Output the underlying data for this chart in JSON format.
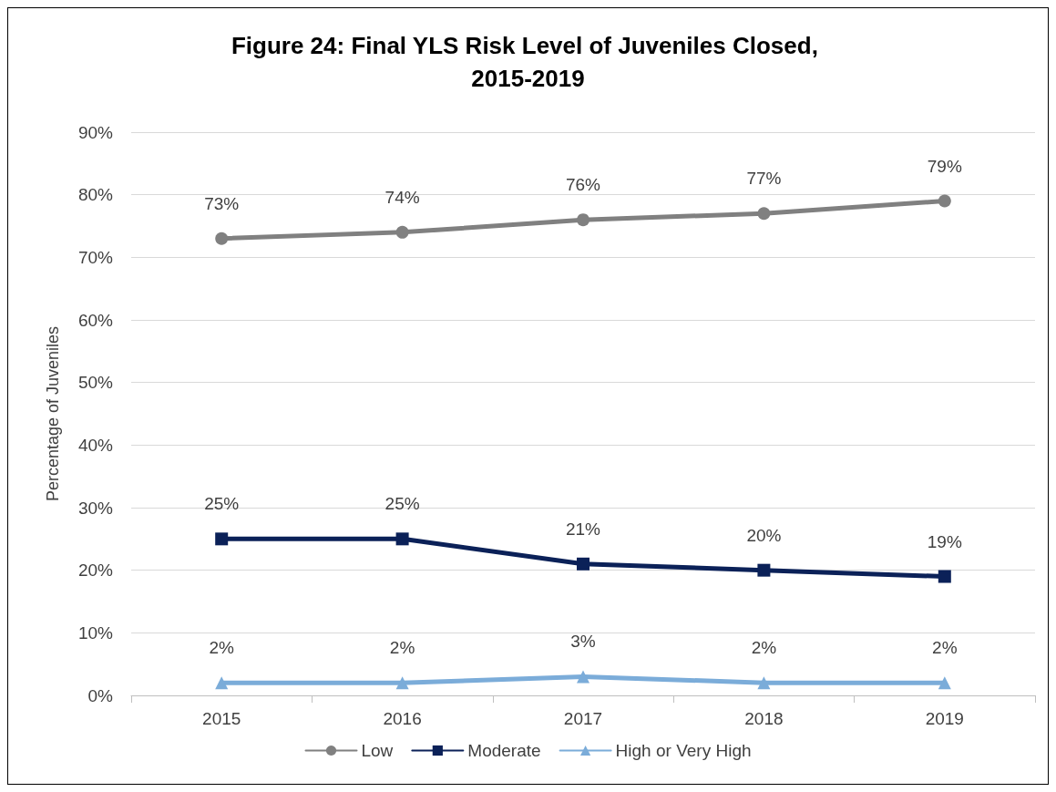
{
  "chart_data": {
    "type": "line",
    "title": "Figure 24: Final YLS Risk Level of Juveniles Closed, 2015-2019",
    "ylabel": "Percentage of Juveniles",
    "categories": [
      "2015",
      "2016",
      "2017",
      "2018",
      "2019"
    ],
    "series": [
      {
        "name": "Low",
        "color": "#808080",
        "marker": "circle",
        "values": [
          73,
          74,
          76,
          77,
          79
        ],
        "value_labels": [
          "73%",
          "74%",
          "76%",
          "77%",
          "79%"
        ]
      },
      {
        "name": "Moderate",
        "color": "#0b2158",
        "marker": "square",
        "values": [
          25,
          25,
          21,
          20,
          19
        ],
        "value_labels": [
          "25%",
          "25%",
          "21%",
          "20%",
          "19%"
        ]
      },
      {
        "name": "High or Very High",
        "color": "#7bacd9",
        "marker": "triangle",
        "values": [
          2,
          2,
          3,
          2,
          2
        ],
        "value_labels": [
          "2%",
          "2%",
          "3%",
          "2%",
          "2%"
        ]
      }
    ],
    "ylim": [
      0,
      90
    ],
    "yticks": [
      {
        "value": 0,
        "label": "0%"
      },
      {
        "value": 10,
        "label": "10%"
      },
      {
        "value": 20,
        "label": "20%"
      },
      {
        "value": 30,
        "label": "30%"
      },
      {
        "value": 40,
        "label": "40%"
      },
      {
        "value": 50,
        "label": "50%"
      },
      {
        "value": 60,
        "label": "60%"
      },
      {
        "value": 70,
        "label": "70%"
      },
      {
        "value": 80,
        "label": "80%"
      },
      {
        "value": 90,
        "label": "90%"
      }
    ],
    "grid": "y",
    "legend": "bottom",
    "line_style": "solid"
  }
}
